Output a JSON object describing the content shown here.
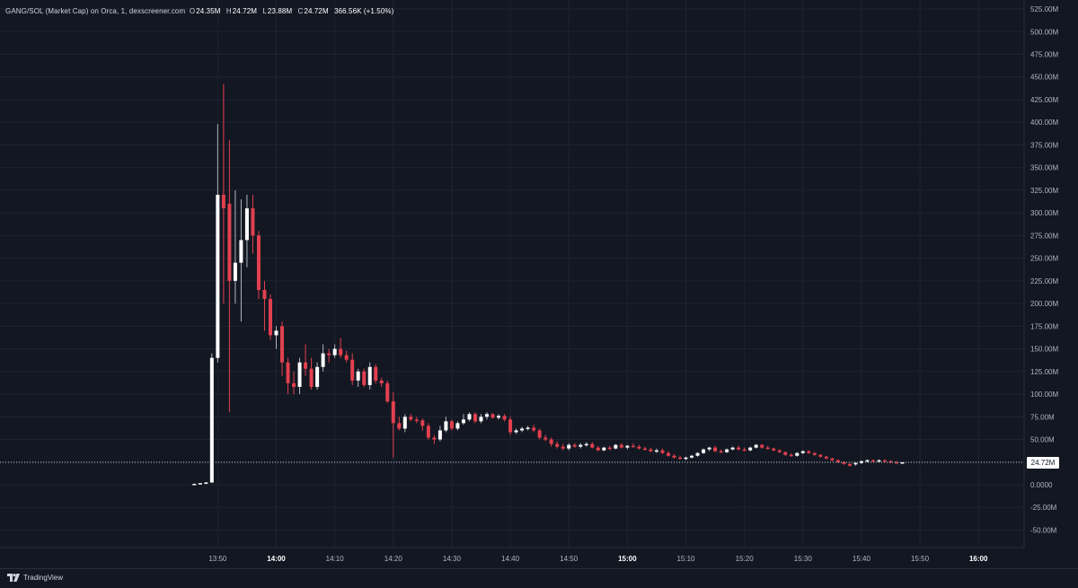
{
  "legend": {
    "title": "GANG/SOL (Market Cap) on Orca, 1, dexscreener.com",
    "open_key": "O",
    "open": "24.35M",
    "high_key": "H",
    "high": "24.72M",
    "low_key": "L",
    "low": "23.88M",
    "close_key": "C",
    "close": "24.72M",
    "change": "366.56K (+1.50%)"
  },
  "price_tag": "24.72M",
  "brand": "TradingView",
  "colors": {
    "background": "#131722",
    "grid": "#1f2330",
    "up": "#ffffff",
    "down": "#e2404f",
    "wick": "#b2b5be",
    "axis_text": "#b2b5be"
  },
  "chart_data": {
    "type": "candlestick",
    "title": "GANG/SOL (Market Cap) on Orca, 1, dexscreener.com",
    "y_unit": "M",
    "ylim": [
      -65,
      530
    ],
    "y_ticks": [
      "525.00M",
      "500.00M",
      "475.00M",
      "450.00M",
      "425.00M",
      "400.00M",
      "375.00M",
      "350.00M",
      "325.00M",
      "300.00M",
      "275.00M",
      "250.00M",
      "225.00M",
      "200.00M",
      "175.00M",
      "150.00M",
      "125.00M",
      "100.00M",
      "75.00M",
      "50.00M",
      "25.00M",
      "0.0000",
      "-25.00M",
      "-50.00M"
    ],
    "y_tick_values": [
      525,
      500,
      475,
      450,
      425,
      400,
      375,
      350,
      325,
      300,
      275,
      250,
      225,
      200,
      175,
      150,
      125,
      100,
      75,
      50,
      25,
      0,
      -25,
      -50
    ],
    "x_ticks": [
      {
        "label": "13:50",
        "min": 830,
        "bold": false
      },
      {
        "label": "14:00",
        "min": 840,
        "bold": true
      },
      {
        "label": "14:10",
        "min": 850,
        "bold": false
      },
      {
        "label": "14:20",
        "min": 860,
        "bold": false
      },
      {
        "label": "14:30",
        "min": 870,
        "bold": false
      },
      {
        "label": "14:40",
        "min": 880,
        "bold": false
      },
      {
        "label": "14:50",
        "min": 890,
        "bold": false
      },
      {
        "label": "15:00",
        "min": 900,
        "bold": true
      },
      {
        "label": "15:10",
        "min": 910,
        "bold": false
      },
      {
        "label": "15:20",
        "min": 920,
        "bold": false
      },
      {
        "label": "15:30",
        "min": 930,
        "bold": false
      },
      {
        "label": "15:40",
        "min": 940,
        "bold": false
      },
      {
        "label": "15:50",
        "min": 950,
        "bold": false
      },
      {
        "label": "16:00",
        "min": 960,
        "bold": true
      }
    ],
    "last_price": 24.72,
    "candles": [
      {
        "t": "13:46",
        "o": 0.5,
        "h": 1.5,
        "l": 0.3,
        "c": 1.0
      },
      {
        "t": "13:47",
        "o": 1.0,
        "h": 2.0,
        "l": 0.8,
        "c": 1.8
      },
      {
        "t": "13:48",
        "o": 1.8,
        "h": 3.0,
        "l": 1.5,
        "c": 2.5
      },
      {
        "t": "13:49",
        "o": 2.5,
        "h": 145,
        "l": 2,
        "c": 140
      },
      {
        "t": "13:50",
        "o": 140,
        "h": 398,
        "l": 135,
        "c": 320
      },
      {
        "t": "13:51",
        "o": 320,
        "h": 442,
        "l": 200,
        "c": 305
      },
      {
        "t": "13:52",
        "o": 310,
        "h": 380,
        "l": 80,
        "c": 225
      },
      {
        "t": "13:53",
        "o": 225,
        "h": 325,
        "l": 200,
        "c": 245
      },
      {
        "t": "13:54",
        "o": 245,
        "h": 315,
        "l": 180,
        "c": 270
      },
      {
        "t": "13:55",
        "o": 270,
        "h": 320,
        "l": 240,
        "c": 305
      },
      {
        "t": "13:56",
        "o": 305,
        "h": 320,
        "l": 255,
        "c": 275
      },
      {
        "t": "13:57",
        "o": 275,
        "h": 280,
        "l": 205,
        "c": 215
      },
      {
        "t": "13:58",
        "o": 215,
        "h": 225,
        "l": 170,
        "c": 205
      },
      {
        "t": "13:59",
        "o": 205,
        "h": 210,
        "l": 160,
        "c": 165
      },
      {
        "t": "14:00",
        "o": 165,
        "h": 175,
        "l": 150,
        "c": 170
      },
      {
        "t": "14:01",
        "o": 175,
        "h": 180,
        "l": 120,
        "c": 135
      },
      {
        "t": "14:02",
        "o": 135,
        "h": 140,
        "l": 100,
        "c": 112
      },
      {
        "t": "14:03",
        "o": 112,
        "h": 125,
        "l": 100,
        "c": 108
      },
      {
        "t": "14:04",
        "o": 108,
        "h": 140,
        "l": 100,
        "c": 135
      },
      {
        "t": "14:05",
        "o": 135,
        "h": 155,
        "l": 120,
        "c": 128
      },
      {
        "t": "14:06",
        "o": 128,
        "h": 140,
        "l": 105,
        "c": 108
      },
      {
        "t": "14:07",
        "o": 108,
        "h": 135,
        "l": 105,
        "c": 130
      },
      {
        "t": "14:08",
        "o": 130,
        "h": 155,
        "l": 125,
        "c": 145
      },
      {
        "t": "14:09",
        "o": 145,
        "h": 150,
        "l": 135,
        "c": 143
      },
      {
        "t": "14:10",
        "o": 143,
        "h": 155,
        "l": 140,
        "c": 150
      },
      {
        "t": "14:11",
        "o": 150,
        "h": 162,
        "l": 140,
        "c": 143
      },
      {
        "t": "14:12",
        "o": 143,
        "h": 148,
        "l": 135,
        "c": 138
      },
      {
        "t": "14:13",
        "o": 138,
        "h": 145,
        "l": 110,
        "c": 115
      },
      {
        "t": "14:14",
        "o": 115,
        "h": 128,
        "l": 108,
        "c": 125
      },
      {
        "t": "14:15",
        "o": 125,
        "h": 128,
        "l": 108,
        "c": 110
      },
      {
        "t": "14:16",
        "o": 110,
        "h": 135,
        "l": 105,
        "c": 130
      },
      {
        "t": "14:17",
        "o": 130,
        "h": 133,
        "l": 112,
        "c": 115
      },
      {
        "t": "14:18",
        "o": 115,
        "h": 118,
        "l": 108,
        "c": 112
      },
      {
        "t": "14:19",
        "o": 112,
        "h": 115,
        "l": 90,
        "c": 92
      },
      {
        "t": "14:20",
        "o": 92,
        "h": 102,
        "l": 30,
        "c": 68
      },
      {
        "t": "14:21",
        "o": 68,
        "h": 75,
        "l": 60,
        "c": 62
      },
      {
        "t": "14:22",
        "o": 62,
        "h": 78,
        "l": 58,
        "c": 75
      },
      {
        "t": "14:23",
        "o": 75,
        "h": 78,
        "l": 70,
        "c": 72
      },
      {
        "t": "14:24",
        "o": 72,
        "h": 75,
        "l": 68,
        "c": 71
      },
      {
        "t": "14:25",
        "o": 71,
        "h": 73,
        "l": 60,
        "c": 65
      },
      {
        "t": "14:26",
        "o": 65,
        "h": 68,
        "l": 50,
        "c": 52
      },
      {
        "t": "14:27",
        "o": 52,
        "h": 55,
        "l": 45,
        "c": 50
      },
      {
        "t": "14:28",
        "o": 50,
        "h": 65,
        "l": 48,
        "c": 60
      },
      {
        "t": "14:29",
        "o": 60,
        "h": 75,
        "l": 58,
        "c": 70
      },
      {
        "t": "14:30",
        "o": 70,
        "h": 72,
        "l": 60,
        "c": 62
      },
      {
        "t": "14:31",
        "o": 62,
        "h": 70,
        "l": 60,
        "c": 68
      },
      {
        "t": "14:32",
        "o": 68,
        "h": 78,
        "l": 66,
        "c": 72
      },
      {
        "t": "14:33",
        "o": 72,
        "h": 80,
        "l": 70,
        "c": 78
      },
      {
        "t": "14:34",
        "o": 78,
        "h": 80,
        "l": 68,
        "c": 70
      },
      {
        "t": "14:35",
        "o": 70,
        "h": 78,
        "l": 68,
        "c": 75
      },
      {
        "t": "14:36",
        "o": 75,
        "h": 80,
        "l": 72,
        "c": 78
      },
      {
        "t": "14:37",
        "o": 78,
        "h": 79,
        "l": 73,
        "c": 74
      },
      {
        "t": "14:38",
        "o": 74,
        "h": 78,
        "l": 72,
        "c": 76
      },
      {
        "t": "14:39",
        "o": 76,
        "h": 78,
        "l": 70,
        "c": 72
      },
      {
        "t": "14:40",
        "o": 72,
        "h": 75,
        "l": 55,
        "c": 58
      },
      {
        "t": "14:41",
        "o": 58,
        "h": 62,
        "l": 56,
        "c": 60
      },
      {
        "t": "14:42",
        "o": 60,
        "h": 64,
        "l": 58,
        "c": 62
      },
      {
        "t": "14:43",
        "o": 62,
        "h": 65,
        "l": 60,
        "c": 63
      },
      {
        "t": "14:44",
        "o": 63,
        "h": 66,
        "l": 58,
        "c": 60
      },
      {
        "t": "14:45",
        "o": 60,
        "h": 62,
        "l": 50,
        "c": 52
      },
      {
        "t": "14:46",
        "o": 52,
        "h": 55,
        "l": 48,
        "c": 50
      },
      {
        "t": "14:47",
        "o": 50,
        "h": 52,
        "l": 42,
        "c": 45
      },
      {
        "t": "14:48",
        "o": 45,
        "h": 48,
        "l": 40,
        "c": 42
      },
      {
        "t": "14:49",
        "o": 42,
        "h": 45,
        "l": 38,
        "c": 40
      },
      {
        "t": "14:50",
        "o": 40,
        "h": 46,
        "l": 38,
        "c": 44
      },
      {
        "t": "14:51",
        "o": 44,
        "h": 46,
        "l": 41,
        "c": 42
      },
      {
        "t": "14:52",
        "o": 42,
        "h": 46,
        "l": 40,
        "c": 44
      },
      {
        "t": "14:53",
        "o": 44,
        "h": 47,
        "l": 42,
        "c": 45
      },
      {
        "t": "14:54",
        "o": 45,
        "h": 47,
        "l": 40,
        "c": 41
      },
      {
        "t": "14:55",
        "o": 41,
        "h": 43,
        "l": 37,
        "c": 38
      },
      {
        "t": "14:56",
        "o": 38,
        "h": 42,
        "l": 37,
        "c": 41
      },
      {
        "t": "14:57",
        "o": 41,
        "h": 43,
        "l": 38,
        "c": 40
      },
      {
        "t": "14:58",
        "o": 40,
        "h": 45,
        "l": 39,
        "c": 44
      },
      {
        "t": "14:59",
        "o": 44,
        "h": 46,
        "l": 40,
        "c": 41
      },
      {
        "t": "15:00",
        "o": 41,
        "h": 44,
        "l": 39,
        "c": 43
      },
      {
        "t": "15:01",
        "o": 43,
        "h": 46,
        "l": 41,
        "c": 42
      },
      {
        "t": "15:02",
        "o": 42,
        "h": 44,
        "l": 39,
        "c": 40
      },
      {
        "t": "15:03",
        "o": 40,
        "h": 42,
        "l": 38,
        "c": 39
      },
      {
        "t": "15:04",
        "o": 39,
        "h": 41,
        "l": 36,
        "c": 37
      },
      {
        "t": "15:05",
        "o": 37,
        "h": 40,
        "l": 35,
        "c": 38
      },
      {
        "t": "15:06",
        "o": 38,
        "h": 40,
        "l": 34,
        "c": 35
      },
      {
        "t": "15:07",
        "o": 35,
        "h": 37,
        "l": 31,
        "c": 32
      },
      {
        "t": "15:08",
        "o": 32,
        "h": 34,
        "l": 29,
        "c": 30
      },
      {
        "t": "15:09",
        "o": 30,
        "h": 32,
        "l": 28,
        "c": 29
      },
      {
        "t": "15:10",
        "o": 29,
        "h": 31,
        "l": 27,
        "c": 30
      },
      {
        "t": "15:11",
        "o": 30,
        "h": 33,
        "l": 29,
        "c": 32
      },
      {
        "t": "15:12",
        "o": 32,
        "h": 36,
        "l": 31,
        "c": 35
      },
      {
        "t": "15:13",
        "o": 35,
        "h": 40,
        "l": 34,
        "c": 39
      },
      {
        "t": "15:14",
        "o": 39,
        "h": 42,
        "l": 37,
        "c": 41
      },
      {
        "t": "15:15",
        "o": 41,
        "h": 43,
        "l": 36,
        "c": 37
      },
      {
        "t": "15:16",
        "o": 37,
        "h": 39,
        "l": 35,
        "c": 36
      },
      {
        "t": "15:17",
        "o": 36,
        "h": 40,
        "l": 35,
        "c": 39
      },
      {
        "t": "15:18",
        "o": 39,
        "h": 42,
        "l": 38,
        "c": 41
      },
      {
        "t": "15:19",
        "o": 41,
        "h": 43,
        "l": 38,
        "c": 39
      },
      {
        "t": "15:20",
        "o": 39,
        "h": 41,
        "l": 37,
        "c": 38
      },
      {
        "t": "15:21",
        "o": 38,
        "h": 42,
        "l": 37,
        "c": 41
      },
      {
        "t": "15:22",
        "o": 41,
        "h": 45,
        "l": 40,
        "c": 44
      },
      {
        "t": "15:23",
        "o": 44,
        "h": 45,
        "l": 40,
        "c": 41
      },
      {
        "t": "15:24",
        "o": 41,
        "h": 43,
        "l": 39,
        "c": 40
      },
      {
        "t": "15:25",
        "o": 40,
        "h": 41,
        "l": 37,
        "c": 38
      },
      {
        "t": "15:26",
        "o": 38,
        "h": 39,
        "l": 35,
        "c": 36
      },
      {
        "t": "15:27",
        "o": 36,
        "h": 37,
        "l": 32,
        "c": 33
      },
      {
        "t": "15:28",
        "o": 33,
        "h": 35,
        "l": 31,
        "c": 32
      },
      {
        "t": "15:29",
        "o": 32,
        "h": 36,
        "l": 31,
        "c": 35
      },
      {
        "t": "15:30",
        "o": 35,
        "h": 38,
        "l": 34,
        "c": 37
      },
      {
        "t": "15:31",
        "o": 37,
        "h": 38,
        "l": 34,
        "c": 35
      },
      {
        "t": "15:32",
        "o": 35,
        "h": 36,
        "l": 32,
        "c": 33
      },
      {
        "t": "15:33",
        "o": 33,
        "h": 34,
        "l": 30,
        "c": 31
      },
      {
        "t": "15:34",
        "o": 31,
        "h": 32,
        "l": 28,
        "c": 29
      },
      {
        "t": "15:35",
        "o": 29,
        "h": 30,
        "l": 26,
        "c": 27
      },
      {
        "t": "15:36",
        "o": 27,
        "h": 28,
        "l": 24,
        "c": 25
      },
      {
        "t": "15:37",
        "o": 25,
        "h": 26,
        "l": 22,
        "c": 23
      },
      {
        "t": "15:38",
        "o": 23,
        "h": 24,
        "l": 20,
        "c": 21
      },
      {
        "t": "15:39",
        "o": 23,
        "h": 25,
        "l": 21,
        "c": 24
      },
      {
        "t": "15:40",
        "o": 24,
        "h": 27,
        "l": 23,
        "c": 26
      },
      {
        "t": "15:41",
        "o": 26,
        "h": 28,
        "l": 25,
        "c": 27
      },
      {
        "t": "15:42",
        "o": 27,
        "h": 28,
        "l": 25,
        "c": 26
      },
      {
        "t": "15:43",
        "o": 26,
        "h": 28,
        "l": 25,
        "c": 27
      },
      {
        "t": "15:44",
        "o": 27,
        "h": 28,
        "l": 25,
        "c": 26
      },
      {
        "t": "15:45",
        "o": 26,
        "h": 27,
        "l": 24,
        "c": 25
      },
      {
        "t": "15:46",
        "o": 25,
        "h": 26,
        "l": 23,
        "c": 24
      },
      {
        "t": "15:47",
        "o": 24.35,
        "h": 24.72,
        "l": 23.88,
        "c": 24.72
      }
    ]
  }
}
